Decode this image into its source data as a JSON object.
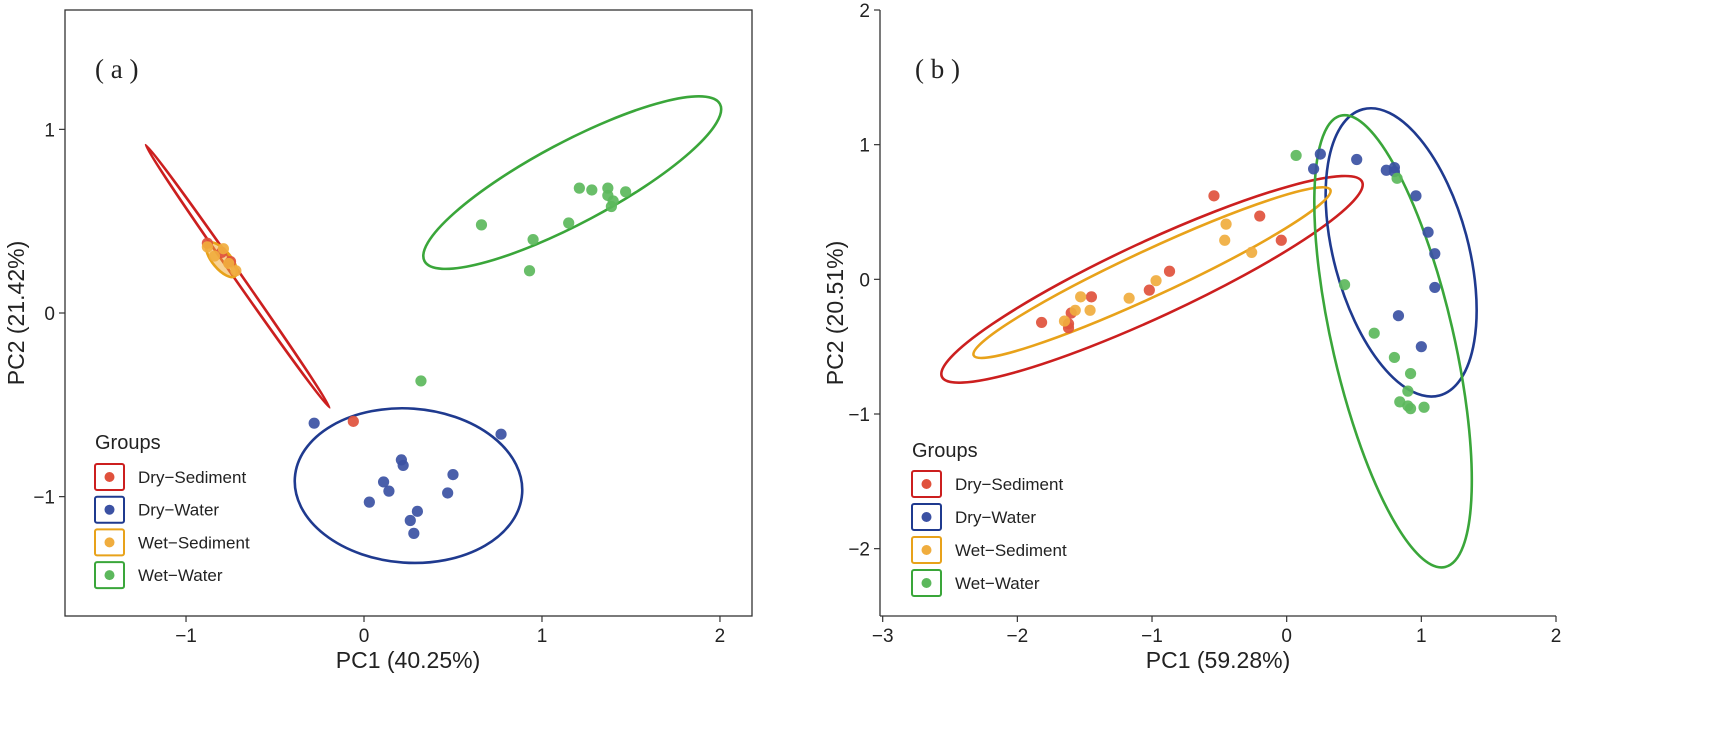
{
  "colors": {
    "Dry-Sediment": "#e0513c",
    "Dry-Water": "#3b51a3",
    "Wet-Sediment": "#f0ad3e",
    "Wet-Water": "#5cb85c",
    "Dry-Sediment-ellipse": "#cc1f1f",
    "Dry-Water-ellipse": "#1f3a8f",
    "Wet-Sediment-ellipse": "#e8a21a",
    "Wet-Water-ellipse": "#3aa63a",
    "axis": "#333333"
  },
  "chart_data": [
    {
      "type": "scatter",
      "panel_label": "( a )",
      "xlabel": "PC1 (40.25%)",
      "ylabel": "PC2 (21.42%)",
      "xlim": [
        -1.68,
        2.18
      ],
      "ylim": [
        -1.65,
        1.65
      ],
      "xticks": [
        -1,
        0,
        1,
        2
      ],
      "xtick_labels": [
        "−1",
        "0",
        "1",
        "2"
      ],
      "yticks": [
        -1,
        0,
        1
      ],
      "ytick_labels": [
        "−1",
        "0",
        "1"
      ],
      "frame": "box",
      "legend": {
        "title": "Groups",
        "position": "bottom-left",
        "entries": [
          "Dry-Sediment",
          "Dry-Water",
          "Wet-Sediment",
          "Wet-Water"
        ],
        "labels": [
          "Dry−Sediment",
          "Dry−Water",
          "Wet−Sediment",
          "Wet−Water"
        ]
      },
      "series": [
        {
          "name": "Dry-Sediment",
          "points": [
            [
              -0.06,
              -0.59
            ],
            [
              -0.88,
              0.38
            ],
            [
              -0.8,
              0.33
            ],
            [
              -0.75,
              0.28
            ]
          ],
          "ellipse": {
            "cx": -0.71,
            "cy": 0.2,
            "rx": 0.9,
            "ry": 0.02,
            "angle": -55
          }
        },
        {
          "name": "Dry-Water",
          "points": [
            [
              -0.28,
              -0.6
            ],
            [
              0.77,
              -0.66
            ],
            [
              0.21,
              -0.8
            ],
            [
              0.22,
              -0.83
            ],
            [
              0.5,
              -0.88
            ],
            [
              0.11,
              -0.92
            ],
            [
              0.14,
              -0.97
            ],
            [
              0.47,
              -0.98
            ],
            [
              0.03,
              -1.03
            ],
            [
              0.3,
              -1.08
            ],
            [
              0.26,
              -1.13
            ],
            [
              0.28,
              -1.2
            ]
          ],
          "ellipse": {
            "cx": 0.25,
            "cy": -0.94,
            "rx": 0.64,
            "ry": 0.42,
            "angle": -4
          }
        },
        {
          "name": "Wet-Sediment",
          "points": [
            [
              -0.88,
              0.36
            ],
            [
              -0.84,
              0.31
            ],
            [
              -0.79,
              0.35
            ],
            [
              -0.76,
              0.27
            ],
            [
              -0.72,
              0.23
            ]
          ],
          "ellipse": {
            "cx": -0.8,
            "cy": 0.29,
            "rx": 0.12,
            "ry": 0.05,
            "angle": -50
          }
        },
        {
          "name": "Wet-Water",
          "points": [
            [
              0.66,
              0.48
            ],
            [
              1.21,
              0.68
            ],
            [
              1.28,
              0.67
            ],
            [
              1.37,
              0.68
            ],
            [
              1.47,
              0.66
            ],
            [
              1.37,
              0.64
            ],
            [
              1.39,
              0.58
            ],
            [
              1.4,
              0.61
            ],
            [
              1.15,
              0.49
            ],
            [
              0.95,
              0.4
            ],
            [
              0.93,
              0.23
            ],
            [
              0.32,
              -0.37
            ]
          ],
          "ellipse": {
            "cx": 1.17,
            "cy": 0.71,
            "rx": 0.94,
            "ry": 0.22,
            "angle": 28
          }
        }
      ]
    },
    {
      "type": "scatter",
      "panel_label": "( b )",
      "xlabel": "PC1 (59.28%)",
      "ylabel": "PC2 (20.51%)",
      "xlim": [
        -3.02,
        2.0
      ],
      "ylim": [
        -2.5,
        2.0
      ],
      "xticks": [
        -3,
        -2,
        -1,
        0,
        1,
        2
      ],
      "xtick_labels": [
        "−3",
        "−2",
        "−1",
        "0",
        "1",
        "2"
      ],
      "yticks": [
        -2,
        -1,
        0,
        1,
        2
      ],
      "ytick_labels": [
        "−2",
        "−1",
        "0",
        "1",
        "2"
      ],
      "frame": "axes",
      "legend": {
        "title": "Groups",
        "position": "bottom-left",
        "entries": [
          "Dry-Sediment",
          "Dry-Water",
          "Wet-Sediment",
          "Wet-Water"
        ],
        "labels": [
          "Dry−Sediment",
          "Dry−Water",
          "Wet−Sediment",
          "Wet−Water"
        ]
      },
      "series": [
        {
          "name": "Dry-Sediment",
          "points": [
            [
              -1.82,
              -0.32
            ],
            [
              -1.62,
              -0.33
            ],
            [
              -1.6,
              -0.25
            ],
            [
              -1.62,
              -0.36
            ],
            [
              -1.45,
              -0.13
            ],
            [
              -1.02,
              -0.08
            ],
            [
              -0.87,
              0.06
            ],
            [
              -0.54,
              0.62
            ],
            [
              -0.2,
              0.47
            ],
            [
              -0.04,
              0.29
            ]
          ],
          "ellipse": {
            "cx": -1.0,
            "cy": 0.0,
            "rx": 1.72,
            "ry": 0.28,
            "angle": 24.9
          }
        },
        {
          "name": "Dry-Water",
          "points": [
            [
              0.25,
              0.93
            ],
            [
              0.2,
              0.82
            ],
            [
              0.52,
              0.89
            ],
            [
              0.74,
              0.81
            ],
            [
              0.8,
              0.83
            ],
            [
              0.8,
              0.8
            ],
            [
              0.96,
              0.62
            ],
            [
              1.05,
              0.35
            ],
            [
              1.1,
              0.19
            ],
            [
              1.1,
              -0.06
            ],
            [
              0.83,
              -0.27
            ],
            [
              1.0,
              -0.5
            ]
          ],
          "ellipse": {
            "cx": 0.85,
            "cy": 0.2,
            "rx": 0.5,
            "ry": 1.1,
            "angle": 15
          }
        },
        {
          "name": "Wet-Sediment",
          "points": [
            [
              -1.65,
              -0.31
            ],
            [
              -1.57,
              -0.23
            ],
            [
              -1.53,
              -0.13
            ],
            [
              -1.46,
              -0.23
            ],
            [
              -1.17,
              -0.14
            ],
            [
              -0.97,
              -0.01
            ],
            [
              -0.45,
              0.41
            ],
            [
              -0.46,
              0.29
            ],
            [
              -0.26,
              0.2
            ]
          ],
          "ellipse": {
            "cx": -1.0,
            "cy": 0.05,
            "rx": 1.46,
            "ry": 0.17,
            "angle": 24.9
          }
        },
        {
          "name": "Wet-Water",
          "points": [
            [
              0.07,
              0.92
            ],
            [
              0.82,
              0.75
            ],
            [
              0.43,
              -0.04
            ],
            [
              0.65,
              -0.4
            ],
            [
              0.8,
              -0.58
            ],
            [
              0.92,
              -0.7
            ],
            [
              0.9,
              -0.83
            ],
            [
              0.84,
              -0.91
            ],
            [
              0.9,
              -0.94
            ],
            [
              0.92,
              -0.96
            ],
            [
              1.02,
              -0.95
            ]
          ],
          "ellipse": {
            "cx": 0.79,
            "cy": -0.46,
            "rx": 0.45,
            "ry": 1.72,
            "angle": 13
          }
        }
      ]
    }
  ]
}
